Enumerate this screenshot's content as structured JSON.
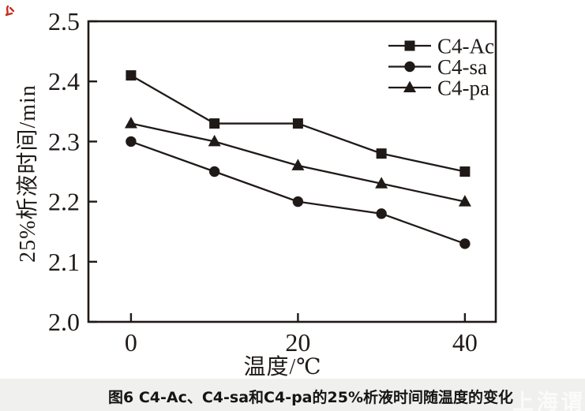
{
  "figure": {
    "caption": "图6  C4-Ac、C4-sa和C4-pa的25%析液时间随温度的变化",
    "watermark": "上海谓剂"
  },
  "chart_data": {
    "type": "line",
    "title": "",
    "xlabel": "温度/℃",
    "ylabel": "25%析液时间/min",
    "x": [
      0,
      10,
      20,
      30,
      40
    ],
    "xlim": [
      -5.1,
      43.7
    ],
    "ylim": [
      2.0,
      2.5
    ],
    "x_ticks": [
      "0",
      "20",
      "40"
    ],
    "y_ticks": [
      "2.0",
      "2.1",
      "2.2",
      "2.3",
      "2.4",
      "2.5"
    ],
    "grid": false,
    "legend_position": "top-right",
    "line_color": "#1f1a17",
    "series": [
      {
        "name": "C4-Ac",
        "marker": "square",
        "values": [
          2.41,
          2.33,
          2.33,
          2.28,
          2.25
        ]
      },
      {
        "name": "C4-sa",
        "marker": "circle",
        "values": [
          2.3,
          2.25,
          2.2,
          2.18,
          2.13
        ]
      },
      {
        "name": "C4-pa",
        "marker": "triangle",
        "values": [
          2.33,
          2.3,
          2.26,
          2.23,
          2.2
        ]
      }
    ]
  }
}
